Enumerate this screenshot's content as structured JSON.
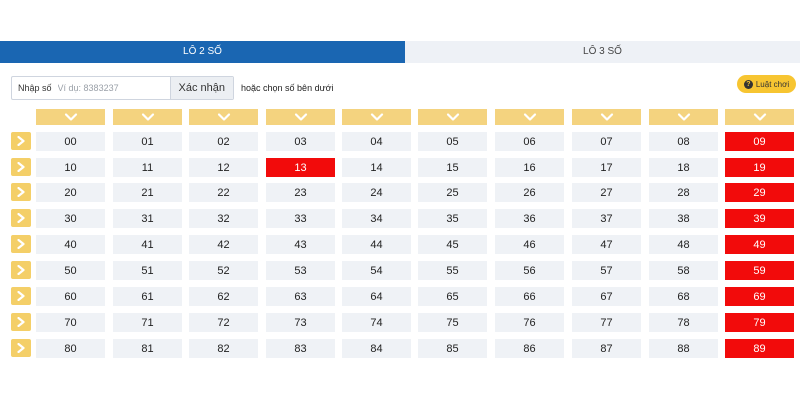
{
  "tabs": [
    {
      "label": "LÔ 2 SỐ",
      "active": true
    },
    {
      "label": "LÔ 3 SỐ",
      "active": false
    }
  ],
  "input": {
    "label": "Nhập số",
    "placeholder": "Ví dụ: 8383237",
    "value": "",
    "confirm_label": "Xác nhận",
    "hint": "hoặc chọn số bên dưới"
  },
  "rules_label": "Luật chơi",
  "icons": {
    "column_header": "chevron-down-icon",
    "row_button": "chevron-right-icon",
    "rules": "question-circle-icon"
  },
  "colors": {
    "tab_active": "#1a66b2",
    "selected": "#f20b0b",
    "header": "#f4d37f",
    "rules_button": "#f7c531"
  },
  "grid": {
    "rows": [
      [
        "00",
        "01",
        "02",
        "03",
        "04",
        "05",
        "06",
        "07",
        "08",
        "09"
      ],
      [
        "10",
        "11",
        "12",
        "13",
        "14",
        "15",
        "16",
        "17",
        "18",
        "19"
      ],
      [
        "20",
        "21",
        "22",
        "23",
        "24",
        "25",
        "26",
        "27",
        "28",
        "29"
      ],
      [
        "30",
        "31",
        "32",
        "33",
        "34",
        "35",
        "36",
        "37",
        "38",
        "39"
      ],
      [
        "40",
        "41",
        "42",
        "43",
        "44",
        "45",
        "46",
        "47",
        "48",
        "49"
      ],
      [
        "50",
        "51",
        "52",
        "53",
        "54",
        "55",
        "56",
        "57",
        "58",
        "59"
      ],
      [
        "60",
        "61",
        "62",
        "63",
        "64",
        "65",
        "66",
        "67",
        "68",
        "69"
      ],
      [
        "70",
        "71",
        "72",
        "73",
        "74",
        "75",
        "76",
        "77",
        "78",
        "79"
      ],
      [
        "80",
        "81",
        "82",
        "83",
        "84",
        "85",
        "86",
        "87",
        "88",
        "89"
      ]
    ],
    "selected": [
      "09",
      "13",
      "19",
      "29",
      "39",
      "49",
      "59",
      "69",
      "79",
      "89"
    ]
  }
}
